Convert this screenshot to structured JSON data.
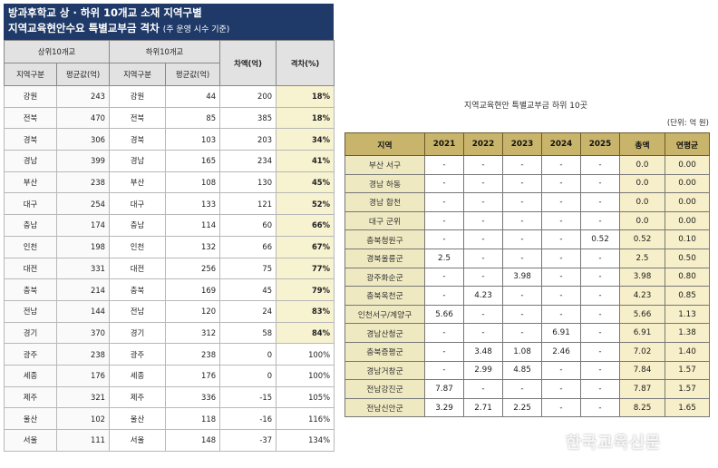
{
  "left": {
    "title_line1": "방과후학교 상 · 하위 10개교 소재 지역구별",
    "title_line2": "지역교육현안수요 특별교부금 격차",
    "title_note": "(주 운영 시수 기준)",
    "group_top": "상위10개교",
    "group_bottom": "하위10개교",
    "col_region": "지역구분",
    "col_avg": "평균값(억)",
    "col_diff": "차액(억)",
    "col_gap": "격차(%)",
    "rows": [
      {
        "r1": "강원",
        "v1": "243",
        "r2": "강원",
        "v2": "44",
        "diff": "200",
        "gap": "18%",
        "hl": true
      },
      {
        "r1": "전북",
        "v1": "470",
        "r2": "전북",
        "v2": "85",
        "diff": "385",
        "gap": "18%",
        "hl": true
      },
      {
        "r1": "경북",
        "v1": "306",
        "r2": "경북",
        "v2": "103",
        "diff": "203",
        "gap": "34%",
        "hl": true
      },
      {
        "r1": "경남",
        "v1": "399",
        "r2": "경남",
        "v2": "165",
        "diff": "234",
        "gap": "41%",
        "hl": true
      },
      {
        "r1": "부산",
        "v1": "238",
        "r2": "부산",
        "v2": "108",
        "diff": "130",
        "gap": "45%",
        "hl": true
      },
      {
        "r1": "대구",
        "v1": "254",
        "r2": "대구",
        "v2": "133",
        "diff": "121",
        "gap": "52%",
        "hl": true
      },
      {
        "r1": "충남",
        "v1": "174",
        "r2": "충남",
        "v2": "114",
        "diff": "60",
        "gap": "66%",
        "hl": true
      },
      {
        "r1": "인천",
        "v1": "198",
        "r2": "인천",
        "v2": "132",
        "diff": "66",
        "gap": "67%",
        "hl": true
      },
      {
        "r1": "대전",
        "v1": "331",
        "r2": "대전",
        "v2": "256",
        "diff": "75",
        "gap": "77%",
        "hl": true
      },
      {
        "r1": "충북",
        "v1": "214",
        "r2": "충북",
        "v2": "169",
        "diff": "45",
        "gap": "79%",
        "hl": true
      },
      {
        "r1": "전남",
        "v1": "144",
        "r2": "전남",
        "v2": "120",
        "diff": "24",
        "gap": "83%",
        "hl": true
      },
      {
        "r1": "경기",
        "v1": "370",
        "r2": "경기",
        "v2": "312",
        "diff": "58",
        "gap": "84%",
        "hl": true
      },
      {
        "r1": "광주",
        "v1": "238",
        "r2": "광주",
        "v2": "238",
        "diff": "0",
        "gap": "100%",
        "hl": false
      },
      {
        "r1": "세종",
        "v1": "176",
        "r2": "세종",
        "v2": "176",
        "diff": "0",
        "gap": "100%",
        "hl": false
      },
      {
        "r1": "제주",
        "v1": "321",
        "r2": "제주",
        "v2": "336",
        "diff": "-15",
        "gap": "105%",
        "hl": false
      },
      {
        "r1": "울산",
        "v1": "102",
        "r2": "울산",
        "v2": "118",
        "diff": "-16",
        "gap": "116%",
        "hl": false
      },
      {
        "r1": "서울",
        "v1": "111",
        "r2": "서울",
        "v2": "148",
        "diff": "-37",
        "gap": "134%",
        "hl": false
      }
    ]
  },
  "right": {
    "title": "지역교육현안 특별교부금 하위 10곳",
    "unit": "(단위: 억 원)",
    "headers": [
      "지역",
      "2021",
      "2022",
      "2023",
      "2024",
      "2025",
      "총액",
      "연평균"
    ],
    "rows": [
      [
        "부산 서구",
        "-",
        "-",
        "-",
        "-",
        "-",
        "0.0",
        "0.00"
      ],
      [
        "경남 하동",
        "-",
        "-",
        "-",
        "-",
        "-",
        "0.0",
        "0.00"
      ],
      [
        "경남 합천",
        "-",
        "-",
        "-",
        "-",
        "-",
        "0.0",
        "0.00"
      ],
      [
        "대구 군위",
        "-",
        "-",
        "-",
        "-",
        "-",
        "0.0",
        "0.00"
      ],
      [
        "충북청원구",
        "-",
        "-",
        "-",
        "-",
        "0.52",
        "0.52",
        "0.10"
      ],
      [
        "경북울릉군",
        "2.5",
        "-",
        "-",
        "-",
        "-",
        "2.5",
        "0.50"
      ],
      [
        "광주화순군",
        "-",
        "-",
        "3.98",
        "-",
        "-",
        "3.98",
        "0.80"
      ],
      [
        "충북옥천군",
        "-",
        "4.23",
        "-",
        "-",
        "-",
        "4.23",
        "0.85"
      ],
      [
        "인천서구/계양구",
        "5.66",
        "-",
        "-",
        "-",
        "-",
        "5.66",
        "1.13"
      ],
      [
        "경남산청군",
        "-",
        "-",
        "-",
        "6.91",
        "-",
        "6.91",
        "1.38"
      ],
      [
        "충북증평군",
        "-",
        "3.48",
        "1.08",
        "2.46",
        "-",
        "7.02",
        "1.40"
      ],
      [
        "경남거창군",
        "-",
        "2.99",
        "4.85",
        "-",
        "-",
        "7.84",
        "1.57"
      ],
      [
        "전남강진군",
        "7.87",
        "-",
        "-",
        "-",
        "-",
        "7.87",
        "1.57"
      ],
      [
        "전남신안군",
        "3.29",
        "2.71",
        "2.25",
        "-",
        "-",
        "8.25",
        "1.65"
      ]
    ]
  },
  "watermark": "한국교육신문"
}
